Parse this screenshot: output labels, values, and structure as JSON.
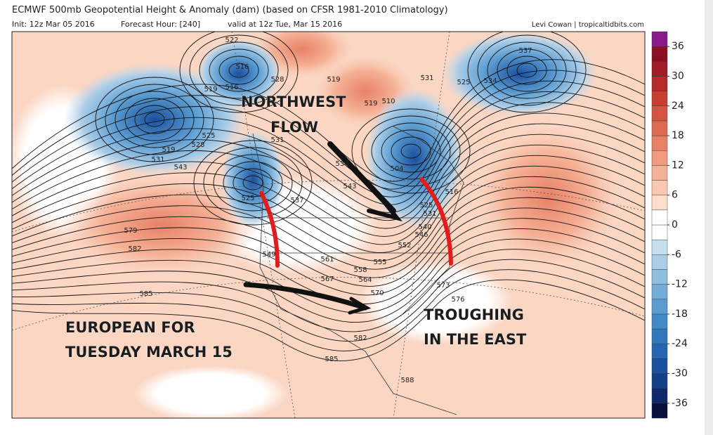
{
  "header": {
    "title": "ECMWF 500mb Geopotential Height & Anomaly (dam) (based on CFSR 1981-2010 Climatology)",
    "init": "Init: 12z Mar 05 2016",
    "forecast_hour": "Forecast Hour: [240]",
    "valid": "valid at 12z Tue, Mar 15 2016",
    "credit": "Levi Cowan | tropicaltidbits.com"
  },
  "map": {
    "contour_labels": [
      522,
      516,
      528,
      519,
      516,
      519,
      519,
      510,
      531,
      525,
      534,
      537,
      525,
      528,
      519,
      531,
      543,
      531,
      534,
      543,
      525,
      537,
      504,
      516,
      525,
      531,
      540,
      546,
      552,
      549,
      561,
      555,
      558,
      564,
      567,
      570,
      573,
      576,
      579,
      582,
      585,
      582,
      585,
      588
    ],
    "annotations": [
      "NORTHWEST",
      "FLOW",
      "EUROPEAN FOR",
      "TUESDAY MARCH 15",
      "TROUGHING",
      "IN THE EAST"
    ]
  },
  "colorbar": {
    "lim": [
      -39,
      39
    ],
    "ticks": [
      36,
      30,
      24,
      18,
      12,
      6,
      0,
      -6,
      -12,
      -18,
      -24,
      -30,
      -36
    ],
    "colors": [
      "#08103e",
      "#0c2a6b",
      "#123f8a",
      "#1a509e",
      "#2466b0",
      "#3078bd",
      "#4189c7",
      "#5a9bd0",
      "#74acd8",
      "#8fbde0",
      "#aacde8",
      "#c6dff0",
      "#ffffff",
      "#ffffff",
      "#fcdccb",
      "#f9c8b0",
      "#f5b196",
      "#f09a7e",
      "#e88166",
      "#df6a52",
      "#d45441",
      "#c73f33",
      "#b52b2a",
      "#a11a25",
      "#8a0f22",
      "#8a1a8a"
    ]
  }
}
